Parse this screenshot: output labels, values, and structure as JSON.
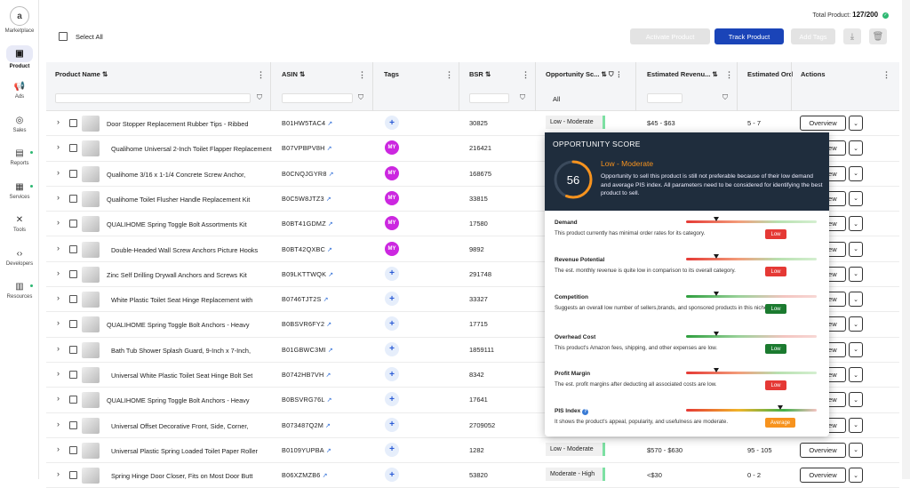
{
  "sidebar": {
    "marketplace": "Marketplace",
    "logo": "a",
    "items": [
      {
        "label": "Product",
        "icon": "box-icon",
        "active": true
      },
      {
        "label": "Ads",
        "icon": "megaphone-icon"
      },
      {
        "label": "Sales",
        "icon": "globe-icon"
      },
      {
        "label": "Reports",
        "icon": "report-icon",
        "dot": true
      },
      {
        "label": "Services",
        "icon": "briefcase-icon",
        "dot": true
      },
      {
        "label": "Tools",
        "icon": "tools-icon"
      },
      {
        "label": "Developers",
        "icon": "code-icon"
      },
      {
        "label": "Resources",
        "icon": "book-icon",
        "dot": true
      }
    ]
  },
  "header": {
    "total_label": "Total Product:",
    "total_value": "127/200",
    "select_all": "Select All",
    "activate": "Activate Product",
    "track": "Track Product",
    "add_tags": "Add Tags"
  },
  "columns": {
    "product_name": "Product Name",
    "asin": "ASIN",
    "tags": "Tags",
    "bsr": "BSR",
    "opportunity": "Opportunity Sc...",
    "revenue": "Estimated Revenu...",
    "orders": "Estimated Ord",
    "actions": "Actions",
    "opp_filter": "All"
  },
  "rows": [
    {
      "name": "Door Stopper Replacement Rubber Tips - Ribbed",
      "asin": "B01HW5TAC4",
      "tag": "+",
      "bsr": "30825",
      "opp": "Low - Moderate",
      "rev": "$45 - $63",
      "ord": "5 - 7",
      "ov": "Overview",
      "indent": false
    },
    {
      "name": "Qualihome Universal 2-Inch Toilet Flapper Replacement",
      "asin": "B07VPBPV8H",
      "tag": "MY",
      "bsr": "216421",
      "opp": "",
      "rev": "",
      "ord": "",
      "ov": "Overview",
      "indent": true
    },
    {
      "name": "Qualihome 3/16 x 1-1/4 Concrete Screw Anchor,",
      "asin": "B0CNQJGYR8",
      "tag": "MY",
      "bsr": "168675",
      "opp": "",
      "rev": "",
      "ord": "",
      "ov": "Overview",
      "indent": false
    },
    {
      "name": "Qualihome Toilet Flusher Handle Replacement Kit",
      "asin": "B0C5W8JTZ3",
      "tag": "MY",
      "bsr": "33815",
      "opp": "",
      "rev": "",
      "ord": "",
      "ov": "Overview",
      "indent": false
    },
    {
      "name": "QUALIHOME Spring Toggle Bolt Assortments Kit",
      "asin": "B0BT41GDMZ",
      "tag": "MY",
      "bsr": "17580",
      "opp": "",
      "rev": "",
      "ord": "",
      "ov": "Overview",
      "indent": false
    },
    {
      "name": "Double-Headed Wall Screw Anchors Picture Hooks",
      "asin": "B0BT42QXBC",
      "tag": "MY",
      "bsr": "9892",
      "opp": "",
      "rev": "",
      "ord": "",
      "ov": "Overview",
      "indent": true
    },
    {
      "name": "Zinc Self Drilling Drywall Anchors and Screws Kit",
      "asin": "B09LKTTWQK",
      "tag": "+",
      "bsr": "291748",
      "opp": "",
      "rev": "",
      "ord": "",
      "ov": "Overview",
      "indent": false
    },
    {
      "name": "White Plastic Toilet Seat Hinge Replacement with",
      "asin": "B0746TJT2S",
      "tag": "+",
      "bsr": "33327",
      "opp": "",
      "rev": "",
      "ord": "",
      "ov": "Overview",
      "indent": true
    },
    {
      "name": "QUALIHOME Spring Toggle Bolt Anchors - Heavy",
      "asin": "B0BSVR6FY2",
      "tag": "+",
      "bsr": "17715",
      "opp": "",
      "rev": "",
      "ord": "",
      "ov": "Overview",
      "indent": false
    },
    {
      "name": "Bath Tub Shower Splash Guard, 9-Inch x 7-Inch,",
      "asin": "B01GBWC3MI",
      "tag": "+",
      "bsr": "1859111",
      "opp": "",
      "rev": "",
      "ord": "",
      "ov": "Overview",
      "indent": true
    },
    {
      "name": "Universal White Plastic Toilet Seat Hinge Bolt Set",
      "asin": "B0742HB7VH",
      "tag": "+",
      "bsr": "8342",
      "opp": "",
      "rev": "",
      "ord": "",
      "ov": "Overview",
      "indent": true
    },
    {
      "name": "QUALIHOME Spring Toggle Bolt Anchors - Heavy",
      "asin": "B0BSVRG76L",
      "tag": "+",
      "bsr": "17641",
      "opp": "",
      "rev": "",
      "ord": "",
      "ov": "Overview",
      "indent": false
    },
    {
      "name": "Universal Offset Decorative Front, Side, Corner,",
      "asin": "B073487Q2M",
      "tag": "+",
      "bsr": "2709052",
      "opp": "",
      "rev": "",
      "ord": "",
      "ov": "Overview",
      "indent": true
    },
    {
      "name": "Universal Plastic Spring Loaded Toilet Paper Roller",
      "asin": "B0109YUPBA",
      "tag": "+",
      "bsr": "1282",
      "opp": "Low - Moderate",
      "rev": "$570 - $630",
      "ord": "95 - 105",
      "ov": "Overview",
      "indent": true
    },
    {
      "name": "Spring Hinge Door Closer, Fits on Most Door Butt",
      "asin": "B06XZMZB6",
      "tag": "+",
      "bsr": "53820",
      "opp": "Moderate - High",
      "rev": "<$30",
      "ord": "0 - 2",
      "ov": "Overview",
      "indent": true
    }
  ],
  "popup": {
    "title": "OPPORTUNITY SCORE",
    "score": "56",
    "score_value": 56,
    "level": "Low - Moderate",
    "desc": "Opportunity to sell this product is still not preferable because of their low demand and average PIS index. All parameters need to be considered for identifying the best product to sell.",
    "metrics": [
      {
        "name": "Demand",
        "desc": "This product currently has minimal order rates for its category.",
        "badge": "Low",
        "badge_color": "#e53935",
        "level": 0.23,
        "scheme": "red"
      },
      {
        "name": "Revenue Potential",
        "desc": "The est. monthly revenue is quite low in comparison to its overall category.",
        "badge": "Low",
        "badge_color": "#e53935",
        "level": 0.23,
        "scheme": "red"
      },
      {
        "name": "Competition",
        "desc": "Suggests an overall low number of sellers,brands, and sponsored products in this niche.",
        "badge": "Low",
        "badge_color": "#1b7a2f",
        "level": 0.23,
        "scheme": "green"
      },
      {
        "name": "Overhead Cost",
        "desc": "This product's Amazon fees, shipping, and other expenses are low.",
        "badge": "Low",
        "badge_color": "#1b7a2f",
        "level": 0.23,
        "scheme": "green"
      },
      {
        "name": "Profit Margin",
        "desc": "The est. profit margins after deducting all associated costs are low.",
        "badge": "Low",
        "badge_color": "#e53935",
        "level": 0.23,
        "scheme": "red"
      },
      {
        "name": "PIS Index",
        "desc": "It shows the product's appeal, popularity, and usefulness are moderate.",
        "badge": "Average",
        "badge_color": "#f7931e",
        "level": 0.72,
        "scheme": "pis"
      }
    ]
  }
}
